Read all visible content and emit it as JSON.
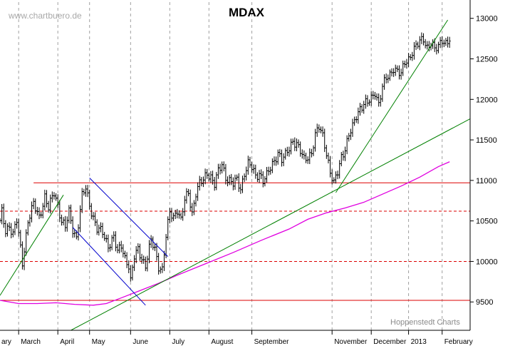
{
  "watermark": "www.chartbuero.de",
  "credit": "Hoppenstedt Charts",
  "chart_data": {
    "type": "line",
    "title": "MDAX",
    "x_unit": "trading session (0 = first session shown, mid-February 2012)",
    "x_range": [
      0,
      252
    ],
    "ylim": [
      9150,
      13200
    ],
    "y_ticks": [
      "9500",
      "10000",
      "10500",
      "11000",
      "11500",
      "12000",
      "12500",
      "13000"
    ],
    "y_tick_values": [
      9500,
      10000,
      10500,
      11000,
      11500,
      12000,
      12500,
      13000
    ],
    "grid": "vertical dashed at month boundaries",
    "months": [
      {
        "label": "ary",
        "x": 0
      },
      {
        "label": "March",
        "x": 10
      },
      {
        "label": "April",
        "x": 31
      },
      {
        "label": "May",
        "x": 48
      },
      {
        "label": "June",
        "x": 70
      },
      {
        "label": "July",
        "x": 91
      },
      {
        "label": "August",
        "x": 112
      },
      {
        "label": "September",
        "x": 135
      },
      {
        "label": "November",
        "x": 178
      },
      {
        "label": "December",
        "x": 199
      },
      {
        "label": "2013",
        "x": 219
      },
      {
        "label": "February",
        "x": 237
      }
    ],
    "price_anchors": [
      [
        0,
        10480
      ],
      [
        1,
        10600
      ],
      [
        3,
        10380
      ],
      [
        5,
        10450
      ],
      [
        7,
        10330
      ],
      [
        9,
        10500
      ],
      [
        12,
        9990
      ],
      [
        15,
        10500
      ],
      [
        18,
        10700
      ],
      [
        21,
        10550
      ],
      [
        24,
        10800
      ],
      [
        26,
        10650
      ],
      [
        29,
        10850
      ],
      [
        31,
        10700
      ],
      [
        33,
        10500
      ],
      [
        35,
        10420
      ],
      [
        37,
        10600
      ],
      [
        39,
        10400
      ],
      [
        41,
        10300
      ],
      [
        44,
        10800
      ],
      [
        46,
        10900
      ],
      [
        48,
        10700
      ],
      [
        50,
        10550
      ],
      [
        52,
        10400
      ],
      [
        55,
        10350
      ],
      [
        58,
        10200
      ],
      [
        61,
        10300
      ],
      [
        63,
        10100
      ],
      [
        65,
        10200
      ],
      [
        67,
        10050
      ],
      [
        69,
        9950
      ],
      [
        70,
        9750
      ],
      [
        72,
        10050
      ],
      [
        74,
        10150
      ],
      [
        76,
        10050
      ],
      [
        78,
        9950
      ],
      [
        81,
        10250
      ],
      [
        83,
        10150
      ],
      [
        85,
        9950
      ],
      [
        87,
        9900
      ],
      [
        89,
        10300
      ],
      [
        91,
        10600
      ],
      [
        93,
        10550
      ],
      [
        95,
        10650
      ],
      [
        97,
        10500
      ],
      [
        99,
        10750
      ],
      [
        101,
        10850
      ],
      [
        103,
        10600
      ],
      [
        105,
        10850
      ],
      [
        107,
        10950
      ],
      [
        109,
        11000
      ],
      [
        111,
        11100
      ],
      [
        113,
        11050
      ],
      [
        115,
        10950
      ],
      [
        117,
        11100
      ],
      [
        119,
        11200
      ],
      [
        121,
        11050
      ],
      [
        123,
        11000
      ],
      [
        125,
        10950
      ],
      [
        127,
        11000
      ],
      [
        129,
        10900
      ],
      [
        131,
        11100
      ],
      [
        133,
        11200
      ],
      [
        135,
        11150
      ],
      [
        137,
        11050
      ],
      [
        139,
        11100
      ],
      [
        141,
        11000
      ],
      [
        143,
        11050
      ],
      [
        145,
        11150
      ],
      [
        147,
        11250
      ],
      [
        149,
        11350
      ],
      [
        151,
        11250
      ],
      [
        153,
        11300
      ],
      [
        155,
        11400
      ],
      [
        157,
        11500
      ],
      [
        159,
        11450
      ],
      [
        161,
        11350
      ],
      [
        163,
        11250
      ],
      [
        165,
        11300
      ],
      [
        167,
        11350
      ],
      [
        169,
        11550
      ],
      [
        171,
        11650
      ],
      [
        173,
        11550
      ],
      [
        175,
        11350
      ],
      [
        177,
        11100
      ],
      [
        179,
        10950
      ],
      [
        181,
        11100
      ],
      [
        183,
        11300
      ],
      [
        185,
        11400
      ],
      [
        187,
        11550
      ],
      [
        189,
        11650
      ],
      [
        191,
        11800
      ],
      [
        193,
        11900
      ],
      [
        195,
        11950
      ],
      [
        197,
        11950
      ],
      [
        199,
        12000
      ],
      [
        201,
        12100
      ],
      [
        203,
        11950
      ],
      [
        205,
        12150
      ],
      [
        207,
        12250
      ],
      [
        209,
        12300
      ],
      [
        211,
        12400
      ],
      [
        213,
        12350
      ],
      [
        215,
        12300
      ],
      [
        217,
        12450
      ],
      [
        219,
        12500
      ],
      [
        221,
        12600
      ],
      [
        223,
        12650
      ],
      [
        225,
        12700
      ],
      [
        227,
        12750
      ],
      [
        229,
        12650
      ],
      [
        231,
        12700
      ],
      [
        233,
        12600
      ],
      [
        235,
        12650
      ],
      [
        237,
        12750
      ],
      [
        239,
        12700
      ],
      [
        241,
        12720
      ]
    ],
    "moving_average": {
      "color": "#e000e0",
      "points": [
        [
          0,
          9520
        ],
        [
          10,
          9480
        ],
        [
          20,
          9480
        ],
        [
          30,
          9490
        ],
        [
          40,
          9470
        ],
        [
          50,
          9460
        ],
        [
          57,
          9480
        ],
        [
          65,
          9550
        ],
        [
          75,
          9640
        ],
        [
          85,
          9730
        ],
        [
          95,
          9830
        ],
        [
          110,
          9970
        ],
        [
          125,
          10110
        ],
        [
          140,
          10260
        ],
        [
          155,
          10400
        ],
        [
          165,
          10520
        ],
        [
          175,
          10600
        ],
        [
          185,
          10660
        ],
        [
          195,
          10730
        ],
        [
          205,
          10830
        ],
        [
          215,
          10930
        ],
        [
          225,
          11040
        ],
        [
          235,
          11170
        ],
        [
          241,
          11230
        ]
      ]
    },
    "horizontal_lines": [
      {
        "y": 10970,
        "color": "#dd0000",
        "style": "solid",
        "x_from": 18
      },
      {
        "y": 10620,
        "color": "#dd0000",
        "style": "dashed",
        "x_from": 0
      },
      {
        "y": 10000,
        "color": "#dd0000",
        "style": "dashed",
        "x_from": 0
      },
      {
        "y": 9520,
        "color": "#dd0000",
        "style": "solid",
        "x_from": 0
      }
    ],
    "trendlines": [
      {
        "color": "#008000",
        "from": [
          0,
          9580
        ],
        "to": [
          34,
          10820
        ]
      },
      {
        "color": "#008000",
        "from": [
          38,
          9150
        ],
        "to": [
          252,
          11760
        ]
      },
      {
        "color": "#008000",
        "from": [
          180,
          10850
        ],
        "to": [
          240,
          12980
        ]
      },
      {
        "color": "#0000cc",
        "from": [
          48,
          11030
        ],
        "to": [
          90,
          10060
        ]
      },
      {
        "color": "#0000cc",
        "from": [
          39,
          10420
        ],
        "to": [
          78,
          9460
        ]
      }
    ]
  }
}
